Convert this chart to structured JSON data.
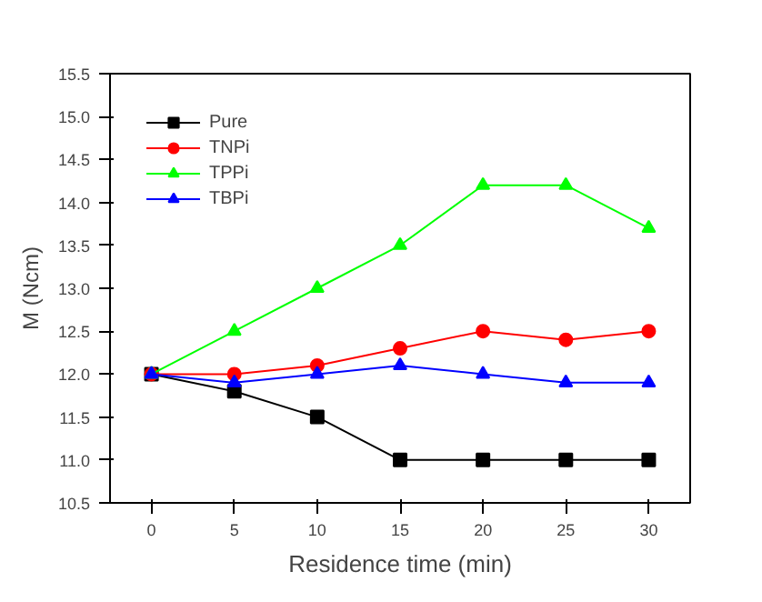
{
  "chart_data": {
    "type": "line",
    "xlabel": "Residence time (min)",
    "ylabel": "M (Ncm)",
    "x": [
      0,
      5,
      10,
      15,
      20,
      25,
      30
    ],
    "xlim": [
      -2.5,
      32.5
    ],
    "xticks": [
      0,
      5,
      10,
      15,
      20,
      25,
      30
    ],
    "ylim": [
      10.5,
      15.5
    ],
    "yticks": [
      {
        "value": 10.5,
        "label": "10.5"
      },
      {
        "value": 11,
        "label": "11.0"
      },
      {
        "value": 11.5,
        "label": "11.5"
      },
      {
        "value": 12,
        "label": "12.0"
      },
      {
        "value": 12.5,
        "label": "12.5"
      },
      {
        "value": 13,
        "label": "13.0"
      },
      {
        "value": 13.5,
        "label": "13.5"
      },
      {
        "value": 14,
        "label": "14.0"
      },
      {
        "value": 14.5,
        "label": "14.5"
      },
      {
        "value": 15,
        "label": "15.0"
      },
      {
        "value": 15.5,
        "label": "15.5"
      }
    ],
    "grid": false,
    "legend": "top left",
    "line_style": "solid",
    "series": [
      {
        "name": "Pure",
        "color": "#000000",
        "marker": "square",
        "values": [
          12.0,
          11.8,
          11.5,
          11.0,
          11.0,
          11.0,
          11.0
        ]
      },
      {
        "name": "TNPi",
        "color": "#ff0000",
        "marker": "circle",
        "values": [
          12.0,
          12.0,
          12.1,
          12.3,
          12.5,
          12.4,
          12.5
        ]
      },
      {
        "name": "TPPi",
        "color": "#00ff00",
        "marker": "triangle",
        "values": [
          12.0,
          12.5,
          13.0,
          13.5,
          14.2,
          14.2,
          13.7
        ]
      },
      {
        "name": "TBPi",
        "color": "#0000ff",
        "marker": "triangle",
        "values": [
          12.0,
          11.9,
          12.0,
          12.1,
          12.0,
          11.9,
          11.9
        ]
      }
    ]
  }
}
